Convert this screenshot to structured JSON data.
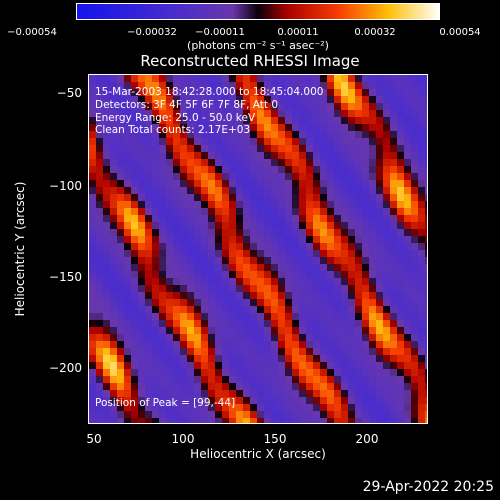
{
  "chart_data": {
    "type": "heatmap",
    "title": "Reconstructed RHESSI Image",
    "xlabel": "Heliocentric X (arcsec)",
    "ylabel": "Heliocentric Y (arcsec)",
    "xlim": [
      42,
      233
    ],
    "ylim": [
      -231,
      -35
    ],
    "xticks": [
      {
        "value": 50,
        "label": "50"
      },
      {
        "value": 100,
        "label": "100"
      },
      {
        "value": 150,
        "label": "150"
      },
      {
        "value": 200,
        "label": "200"
      }
    ],
    "yticks": [
      {
        "value": -50,
        "label": "−50"
      },
      {
        "value": -100,
        "label": "−100"
      },
      {
        "value": -150,
        "label": "−150"
      },
      {
        "value": -200,
        "label": "−200"
      }
    ],
    "colorbar": {
      "range": [
        -0.00054,
        0.00054
      ],
      "ticks": [
        {
          "value": -0.00054,
          "label": "−0.00054"
        },
        {
          "value": -0.00032,
          "label": "−0.00032"
        },
        {
          "value": -0.00011,
          "label": "−0.00011"
        },
        {
          "value": 0.00011,
          "label": "0.00011"
        },
        {
          "value": 0.00032,
          "label": "0.00032"
        },
        {
          "value": 0.00054,
          "label": "0.00054"
        }
      ],
      "units": "(photons cm⁻² s⁻¹ asec⁻²)"
    },
    "annotations": [
      "15-Mar-2003 18:42:28.000 to 18:45:04.000",
      "Detectors: 3F 4F 5F 6F 7F 8F, Att 0",
      "Energy Range: 25.0 - 50.0 keV",
      "Clean    Total counts: 2.17E+03"
    ],
    "peak_label": "Position of Peak = [99,-44]",
    "peak": [
      99,
      -44
    ]
  },
  "footer": {
    "timestamp": "29-Apr-2022 20:25"
  }
}
